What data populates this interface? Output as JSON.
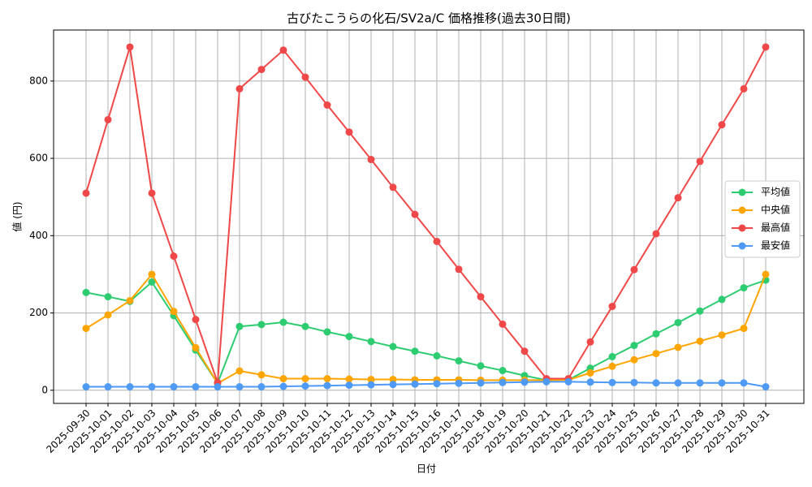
{
  "chart_data": {
    "type": "line",
    "title": "古びたこうらの化石/SV2a/C 価格推移(過去30日間)",
    "xlabel": "日付",
    "ylabel": "値 (円)",
    "x": [
      "2025-09-30",
      "2025-10-01",
      "2025-10-02",
      "2025-10-03",
      "2025-10-04",
      "2025-10-05",
      "2025-10-06",
      "2025-10-07",
      "2025-10-08",
      "2025-10-09",
      "2025-10-10",
      "2025-10-11",
      "2025-10-12",
      "2025-10-13",
      "2025-10-14",
      "2025-10-15",
      "2025-10-16",
      "2025-10-17",
      "2025-10-18",
      "2025-10-19",
      "2025-10-20",
      "2025-10-21",
      "2025-10-22",
      "2025-10-23",
      "2025-10-24",
      "2025-10-25",
      "2025-10-26",
      "2025-10-27",
      "2025-10-28",
      "2025-10-29",
      "2025-10-30",
      "2025-10-31"
    ],
    "series": [
      {
        "name": "平均値",
        "color": "#2ecc71",
        "values": [
          253,
          242,
          230,
          280,
          193,
          104,
          18,
          165,
          170,
          176,
          165,
          151,
          139,
          126,
          113,
          101,
          89,
          76,
          63,
          51,
          38,
          26,
          27,
          57,
          87,
          116,
          146,
          175,
          205,
          235,
          265,
          285
        ]
      },
      {
        "name": "中央値",
        "color": "#ffa500",
        "values": [
          160,
          195,
          232,
          300,
          204,
          110,
          18,
          50,
          40,
          30,
          30,
          30,
          29,
          28,
          28,
          27,
          27,
          27,
          26,
          26,
          26,
          26,
          27,
          45,
          62,
          79,
          95,
          111,
          127,
          143,
          160,
          300
        ]
      },
      {
        "name": "最高値",
        "color": "#f04848",
        "values": [
          510,
          700,
          888,
          510,
          347,
          183,
          20,
          780,
          830,
          880,
          810,
          738,
          668,
          597,
          525,
          455,
          385,
          313,
          242,
          171,
          101,
          30,
          30,
          125,
          217,
          312,
          405,
          498,
          592,
          687,
          780,
          888
        ]
      },
      {
        "name": "最安値",
        "color": "#4e9af5",
        "values": [
          9,
          9,
          9,
          9,
          9,
          9,
          9,
          9,
          9,
          10,
          11,
          12,
          13,
          14,
          15,
          16,
          17,
          18,
          19,
          20,
          21,
          22,
          22,
          21,
          20,
          20,
          19,
          19,
          19,
          19,
          19,
          9
        ]
      }
    ],
    "ylim": [
      -34,
      932
    ],
    "yticks": [
      0,
      200,
      400,
      600,
      800
    ],
    "grid": true,
    "legend": "right"
  }
}
